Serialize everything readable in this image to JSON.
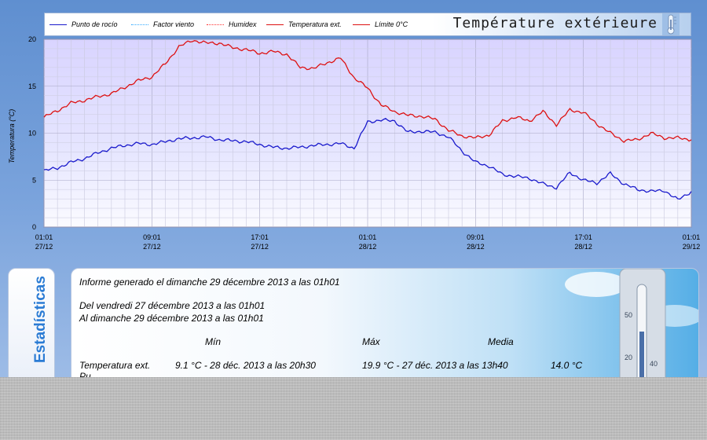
{
  "legend": {
    "title": "Température extérieure",
    "items": [
      {
        "label": "Punto de rocío",
        "color": "#1a1acc",
        "dash": "solid"
      },
      {
        "label": "Factor viento",
        "color": "#33aaff",
        "dash": "dotted"
      },
      {
        "label": "Humidex",
        "color": "#ff3333",
        "dash": "dotted"
      },
      {
        "label": "Temperatura ext.",
        "color": "#dd1111",
        "dash": "solid"
      },
      {
        "label": "Límite 0°C",
        "color": "#dd1111",
        "dash": "solid"
      }
    ]
  },
  "chart_data": {
    "type": "line",
    "ylabel": "Temperatura (°C)",
    "xlabel": "",
    "ylim": [
      0,
      20
    ],
    "yticks": [
      0,
      5,
      10,
      15,
      20
    ],
    "xlim_hours": [
      0,
      48
    ],
    "xticks": [
      {
        "hour": 0,
        "time": "01:01",
        "date": "27/12"
      },
      {
        "hour": 8,
        "time": "09:01",
        "date": "27/12"
      },
      {
        "hour": 16,
        "time": "17:01",
        "date": "27/12"
      },
      {
        "hour": 24,
        "time": "01:01",
        "date": "28/12"
      },
      {
        "hour": 32,
        "time": "09:01",
        "date": "28/12"
      },
      {
        "hour": 40,
        "time": "17:01",
        "date": "28/12"
      },
      {
        "hour": 48,
        "time": "01:01",
        "date": "29/12"
      }
    ],
    "grid": true,
    "series": [
      {
        "name": "Temperatura ext.",
        "color": "#dd1111",
        "x": [
          0,
          1,
          2,
          3,
          4,
          5,
          6,
          7,
          8,
          9,
          10,
          11,
          12,
          13,
          14,
          15,
          16,
          17,
          18,
          19,
          20,
          21,
          22,
          23,
          24,
          25,
          26,
          27,
          28,
          29,
          30,
          31,
          32,
          33,
          34,
          35,
          36,
          37,
          38,
          39,
          40,
          41,
          42,
          43,
          44,
          45,
          46,
          47,
          48
        ],
        "y": [
          11.7,
          12.4,
          13.2,
          13.5,
          13.9,
          14.2,
          14.9,
          15.6,
          16.0,
          17.4,
          19.2,
          19.9,
          19.6,
          19.6,
          19.1,
          18.9,
          18.5,
          18.7,
          18.4,
          17.0,
          16.9,
          17.5,
          18.0,
          15.9,
          14.8,
          13.0,
          12.3,
          11.9,
          11.8,
          11.5,
          10.3,
          9.7,
          9.5,
          9.8,
          11.3,
          11.7,
          11.3,
          12.3,
          10.9,
          12.5,
          12.2,
          11.0,
          10.0,
          9.2,
          9.3,
          10.0,
          9.5,
          9.5,
          9.3
        ]
      },
      {
        "name": "Punto de rocío",
        "color": "#1a1acc",
        "x": [
          0,
          1,
          2,
          3,
          4,
          5,
          6,
          7,
          8,
          9,
          10,
          11,
          12,
          13,
          14,
          15,
          16,
          17,
          18,
          19,
          20,
          21,
          22,
          23,
          24,
          25,
          26,
          27,
          28,
          29,
          30,
          31,
          32,
          33,
          34,
          35,
          36,
          37,
          38,
          39,
          40,
          41,
          42,
          43,
          44,
          45,
          46,
          47,
          48
        ],
        "y": [
          6.0,
          6.3,
          6.9,
          7.3,
          7.9,
          8.4,
          8.7,
          8.9,
          8.8,
          9.1,
          9.4,
          9.5,
          9.6,
          9.3,
          9.2,
          9.1,
          8.8,
          8.5,
          8.4,
          8.5,
          8.7,
          8.8,
          8.9,
          8.4,
          11.2,
          11.4,
          11.3,
          10.1,
          10.2,
          10.1,
          9.6,
          8.1,
          6.9,
          6.5,
          5.6,
          5.4,
          5.2,
          4.6,
          4.2,
          5.8,
          5.0,
          4.7,
          5.7,
          4.6,
          4.0,
          3.8,
          3.9,
          2.9,
          3.8
        ]
      }
    ]
  },
  "stats": {
    "tab_label": "Estadísticas",
    "generated": "Informe generado el dimanche 29 décembre 2013 a las 01h01",
    "from": "Del vendredi 27 décembre 2013 a las 01h01",
    "to": "Al dimanche 29 décembre 2013 a las 01h01",
    "col_min": "Mín",
    "col_max": "Máx",
    "col_avg": "Media",
    "row_label": "Temperatura ext.",
    "row_min": "9.1 °C - 28 déc. 2013 a las 20h30",
    "row_max": "19.9 °C - 27 déc. 2013 a las 13h40",
    "row_avg": "14.0 °C",
    "next_row_label": "Pu"
  }
}
